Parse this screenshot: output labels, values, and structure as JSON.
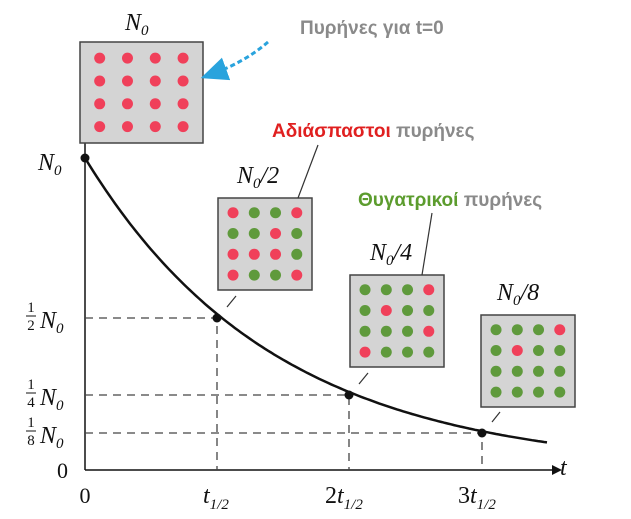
{
  "box_labels": [
    {
      "main": "N",
      "sub": "0"
    },
    {
      "main": "N",
      "sub": "0",
      "suffix": "/2"
    },
    {
      "main": "N",
      "sub": "0",
      "suffix": "/4"
    },
    {
      "main": "N",
      "sub": "0",
      "suffix": "/8"
    }
  ],
  "annotations": {
    "nuclei_t0": "Πυρήνες για t=0",
    "undecayed": {
      "highlight": "Αδιάσπαστοι",
      "rest": "πυρήνες"
    },
    "daughter": {
      "highlight": "Θυγατρικοί",
      "rest": "πυρήνες"
    }
  },
  "y_labels": [
    {
      "main": "N",
      "sub": "0"
    },
    {
      "num": "1",
      "den": "2",
      "main": "N",
      "sub": "0"
    },
    {
      "num": "1",
      "den": "4",
      "main": "N",
      "sub": "0"
    },
    {
      "num": "1",
      "den": "8",
      "main": "N",
      "sub": "0"
    },
    {
      "main": "0"
    }
  ],
  "x_labels": [
    {
      "main": "0"
    },
    {
      "main": "t",
      "sub": "1/2"
    },
    {
      "prefix": "2",
      "main": "t",
      "sub": "1/2"
    },
    {
      "prefix": "3",
      "main": "t",
      "sub": "1/2"
    }
  ],
  "x_axis_label": "t"
}
